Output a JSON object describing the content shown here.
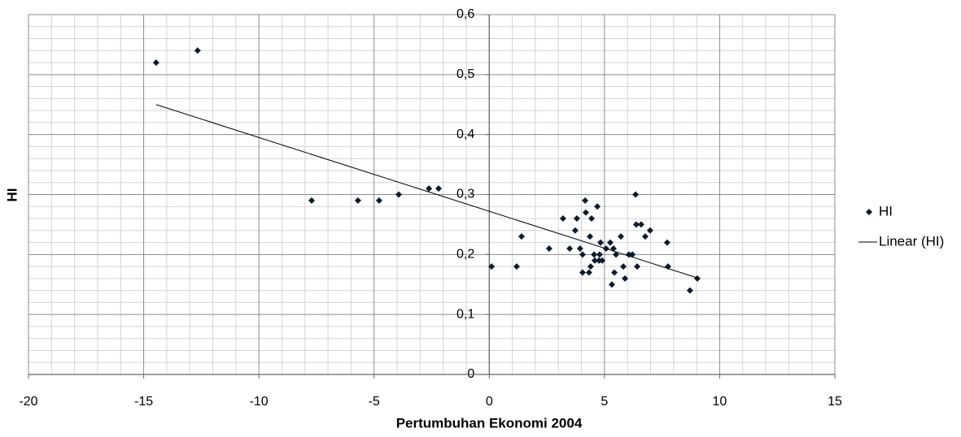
{
  "chart_data": {
    "type": "scatter",
    "x_label": "Pertumbuhan Ekonomi 2004",
    "y_label": "HI",
    "xlim": [
      -20,
      15
    ],
    "ylim": [
      0,
      0.6
    ],
    "xticks": [
      -20,
      -15,
      -10,
      -5,
      0,
      5,
      10,
      15
    ],
    "yticks": [
      {
        "value": 0,
        "label": "0"
      },
      {
        "value": 0.1,
        "label": "0,1"
      },
      {
        "value": 0.2,
        "label": "0,2"
      },
      {
        "value": 0.3,
        "label": "0,3"
      },
      {
        "value": 0.4,
        "label": "0,4"
      },
      {
        "value": 0.5,
        "label": "0,5"
      },
      {
        "value": 0.6,
        "label": "0,6"
      }
    ],
    "minor_xticks": [
      -19,
      -18,
      -17,
      -16,
      -14,
      -13,
      -12,
      -11,
      -9,
      -8,
      -7,
      -6,
      -4,
      -3,
      -2,
      -1,
      1,
      2,
      3,
      4,
      6,
      7,
      8,
      9,
      11,
      12,
      13,
      14
    ],
    "minor_yticks": [
      0.02,
      0.04,
      0.06,
      0.08,
      0.12,
      0.14,
      0.16,
      0.18,
      0.22,
      0.24,
      0.26,
      0.28,
      0.32,
      0.34,
      0.36,
      0.38,
      0.42,
      0.44,
      0.46,
      0.48,
      0.52,
      0.54,
      0.56,
      0.58
    ],
    "grid": true,
    "legend": "right",
    "series": [
      {
        "name": "HI",
        "color": "#0d1b2e",
        "x": [
          -14.46,
          -12.66,
          -7.71,
          -5.7,
          -4.78,
          -3.93,
          -2.62,
          -2.2,
          0.1,
          1.19,
          1.4,
          2.6,
          3.2,
          3.49,
          3.73,
          3.8,
          3.94,
          4.05,
          4.05,
          4.16,
          4.19,
          4.33,
          4.37,
          4.4,
          4.44,
          4.55,
          4.58,
          4.69,
          4.76,
          4.79,
          4.83,
          4.9,
          5.07,
          5.25,
          5.32,
          5.39,
          5.43,
          5.5,
          5.71,
          5.82,
          5.89,
          6.06,
          6.21,
          6.35,
          6.38,
          6.42,
          6.59,
          6.77,
          6.98,
          7.72,
          7.76,
          8.71,
          9.03
        ],
        "values": [
          0.52,
          0.54,
          0.29,
          0.29,
          0.29,
          0.3,
          0.31,
          0.31,
          0.18,
          0.18,
          0.23,
          0.21,
          0.26,
          0.21,
          0.24,
          0.26,
          0.21,
          0.17,
          0.2,
          0.29,
          0.27,
          0.17,
          0.23,
          0.18,
          0.26,
          0.2,
          0.19,
          0.28,
          0.19,
          0.2,
          0.22,
          0.19,
          0.21,
          0.22,
          0.15,
          0.21,
          0.17,
          0.2,
          0.23,
          0.18,
          0.16,
          0.2,
          0.2,
          0.3,
          0.25,
          0.18,
          0.25,
          0.23,
          0.24,
          0.22,
          0.18,
          0.14,
          0.16
        ]
      },
      {
        "name": "Linear (HI)",
        "color": "#000000",
        "x": [
          -14.46,
          9.03
        ],
        "values": [
          0.45,
          0.161
        ]
      }
    ]
  }
}
